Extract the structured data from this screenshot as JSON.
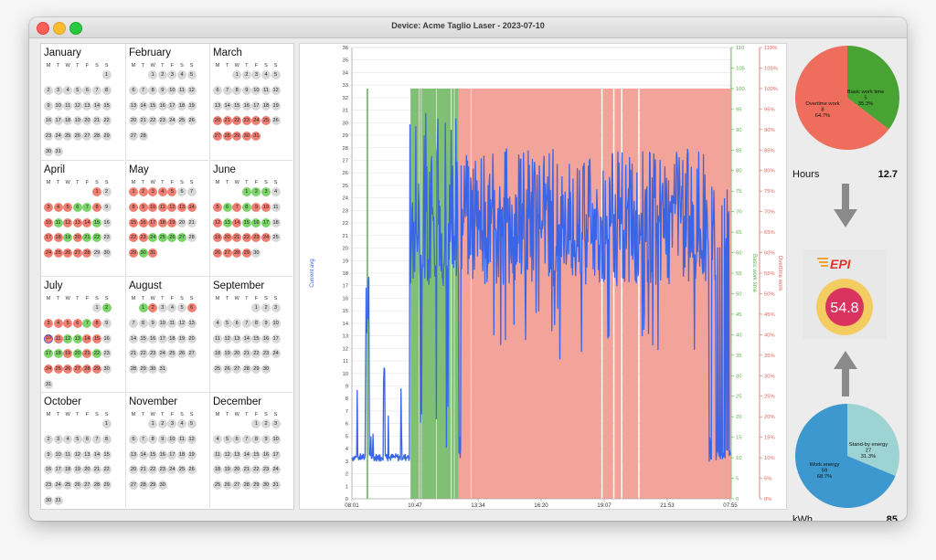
{
  "window": {
    "title": "Device: Acme Taglio Laser - 2023-07-10"
  },
  "calendar": {
    "weekdays": [
      "M",
      "T",
      "W",
      "T",
      "F",
      "S",
      "S"
    ],
    "months": [
      {
        "name": "January",
        "first_col": 6,
        "days": 31,
        "status": {}
      },
      {
        "name": "February",
        "first_col": 2,
        "days": 28,
        "status": {}
      },
      {
        "name": "March",
        "first_col": 2,
        "days": 31,
        "status": {
          "20": "r",
          "21": "r",
          "22": "r",
          "23": "r",
          "24": "r",
          "25": "r",
          "27": "r",
          "28": "r",
          "29": "r",
          "30": "r",
          "31": "r"
        }
      },
      {
        "name": "April",
        "first_col": 5,
        "days": 30,
        "status": {
          "1": "r",
          "3": "r",
          "4": "r",
          "5": "r",
          "6": "g",
          "7": "g",
          "8": "r",
          "10": "r",
          "11": "g",
          "12": "r",
          "13": "r",
          "14": "r",
          "15": "g",
          "17": "r",
          "18": "r",
          "19": "g",
          "20": "r",
          "21": "g",
          "22": "g",
          "24": "r",
          "25": "r",
          "26": "r",
          "27": "r",
          "28": "r"
        }
      },
      {
        "name": "May",
        "first_col": 0,
        "days": 31,
        "status": {
          "1": "r",
          "2": "r",
          "3": "r",
          "4": "r",
          "5": "r",
          "8": "r",
          "9": "r",
          "10": "r",
          "11": "r",
          "12": "r",
          "13": "r",
          "14": "r",
          "15": "r",
          "16": "r",
          "17": "r",
          "18": "r",
          "19": "r",
          "22": "r",
          "23": "r",
          "24": "g",
          "25": "g",
          "26": "g",
          "27": "g",
          "29": "r",
          "30": "g",
          "31": "r"
        }
      },
      {
        "name": "June",
        "first_col": 3,
        "days": 30,
        "status": {
          "1": "g",
          "2": "g",
          "3": "g",
          "5": "r",
          "6": "g",
          "7": "r",
          "8": "g",
          "9": "r",
          "10": "r",
          "12": "r",
          "13": "g",
          "14": "r",
          "15": "g",
          "16": "g",
          "17": "g",
          "19": "r",
          "20": "r",
          "21": "r",
          "22": "r",
          "23": "r",
          "24": "r",
          "26": "r",
          "27": "r",
          "28": "r",
          "29": "r"
        }
      },
      {
        "name": "July",
        "first_col": 5,
        "days": 31,
        "status": {
          "2": "g",
          "3": "r",
          "4": "r",
          "5": "r",
          "6": "r",
          "7": "g",
          "8": "r",
          "10": "sel",
          "11": "r",
          "12": "g",
          "13": "g",
          "14": "r",
          "15": "r",
          "17": "g",
          "18": "g",
          "19": "r",
          "20": "g",
          "21": "r",
          "22": "g",
          "24": "r",
          "25": "r",
          "26": "r",
          "27": "r",
          "28": "r",
          "29": "r"
        }
      },
      {
        "name": "August",
        "first_col": 1,
        "days": 31,
        "status": {
          "1": "g",
          "2": "r",
          "6": "r"
        }
      },
      {
        "name": "September",
        "first_col": 4,
        "days": 30,
        "status": {}
      },
      {
        "name": "October",
        "first_col": 6,
        "days": 31,
        "status": {}
      },
      {
        "name": "November",
        "first_col": 2,
        "days": 30,
        "status": {}
      },
      {
        "name": "December",
        "first_col": 4,
        "days": 31,
        "status": {}
      }
    ]
  },
  "chart_data": {
    "type": "line",
    "x_ticks": [
      "08:01",
      "10:47",
      "13:34",
      "16:20",
      "19:07",
      "21:53",
      "07:55"
    ],
    "x_range": [
      "08:01",
      "07:55"
    ],
    "y_left": {
      "label": "Current avg",
      "ylim": [
        0,
        36
      ],
      "ticks": [
        0,
        1,
        2,
        3,
        4,
        5,
        6,
        7,
        8,
        9,
        10,
        11,
        12,
        13,
        14,
        15,
        16,
        17,
        18,
        19,
        20,
        21,
        22,
        23,
        24,
        25,
        26,
        27,
        28,
        29,
        30,
        31,
        32,
        33,
        34,
        35,
        36
      ],
      "color": "#3a65e6"
    },
    "y_right1": {
      "label": "Basic work time",
      "ylim": [
        0,
        110
      ],
      "ticks": [
        0,
        5,
        10,
        15,
        20,
        25,
        30,
        35,
        40,
        45,
        50,
        55,
        60,
        65,
        70,
        75,
        80,
        85,
        90,
        95,
        100,
        105,
        110
      ],
      "color": "#5cae4c"
    },
    "y_right2": {
      "label": "Overtime work",
      "ylim": [
        0,
        110
      ],
      "ticks": [
        "0%",
        "5%",
        "10%",
        "15%",
        "20%",
        "25%",
        "30%",
        "35%",
        "40%",
        "45%",
        "50%",
        "55%",
        "60%",
        "65%",
        "70%",
        "75%",
        "80%",
        "85%",
        "90%",
        "95%",
        "100%",
        "105%",
        "110%"
      ],
      "color": "#e0645a"
    },
    "green_bands_min": [
      [
        55,
        62
      ],
      [
        222,
        254
      ],
      [
        256,
        262
      ],
      [
        264,
        320
      ],
      [
        322,
        375
      ],
      [
        378,
        387
      ],
      [
        389,
        404
      ]
    ],
    "red_bands_min": [
      [
        404,
        450
      ],
      [
        452,
        945
      ],
      [
        950,
        990
      ],
      [
        995,
        1020
      ],
      [
        1025,
        1085
      ],
      [
        1090,
        1435
      ]
    ],
    "band_level": 100,
    "series": [
      {
        "name": "Current avg",
        "x_range_min": [
          0,
          1434
        ],
        "approx": "idle ~3A, working 18-27A"
      }
    ]
  },
  "pies": {
    "hours": {
      "label": "Hours",
      "total": "12.7",
      "slices": [
        {
          "name": "Basic work time",
          "value": "5",
          "pct": "35.3%",
          "color": "#47a332"
        },
        {
          "name": "Overtime work",
          "value": "8",
          "pct": "64.7%",
          "color": "#ef6d5c"
        }
      ]
    },
    "kwh": {
      "label": "kWh",
      "total": "85",
      "slices": [
        {
          "name": "Stand-by energy",
          "value": "27",
          "pct": "31.3%",
          "color": "#9dd3d3"
        },
        {
          "name": "Work energy",
          "value": "59",
          "pct": "68.7%",
          "color": "#3d98cf"
        }
      ]
    }
  },
  "epi": {
    "logo": "EPI",
    "score": "54.8",
    "colors": {
      "ring": "#f3cd62",
      "center": "#d8345f",
      "logo": "#e0332a"
    }
  }
}
